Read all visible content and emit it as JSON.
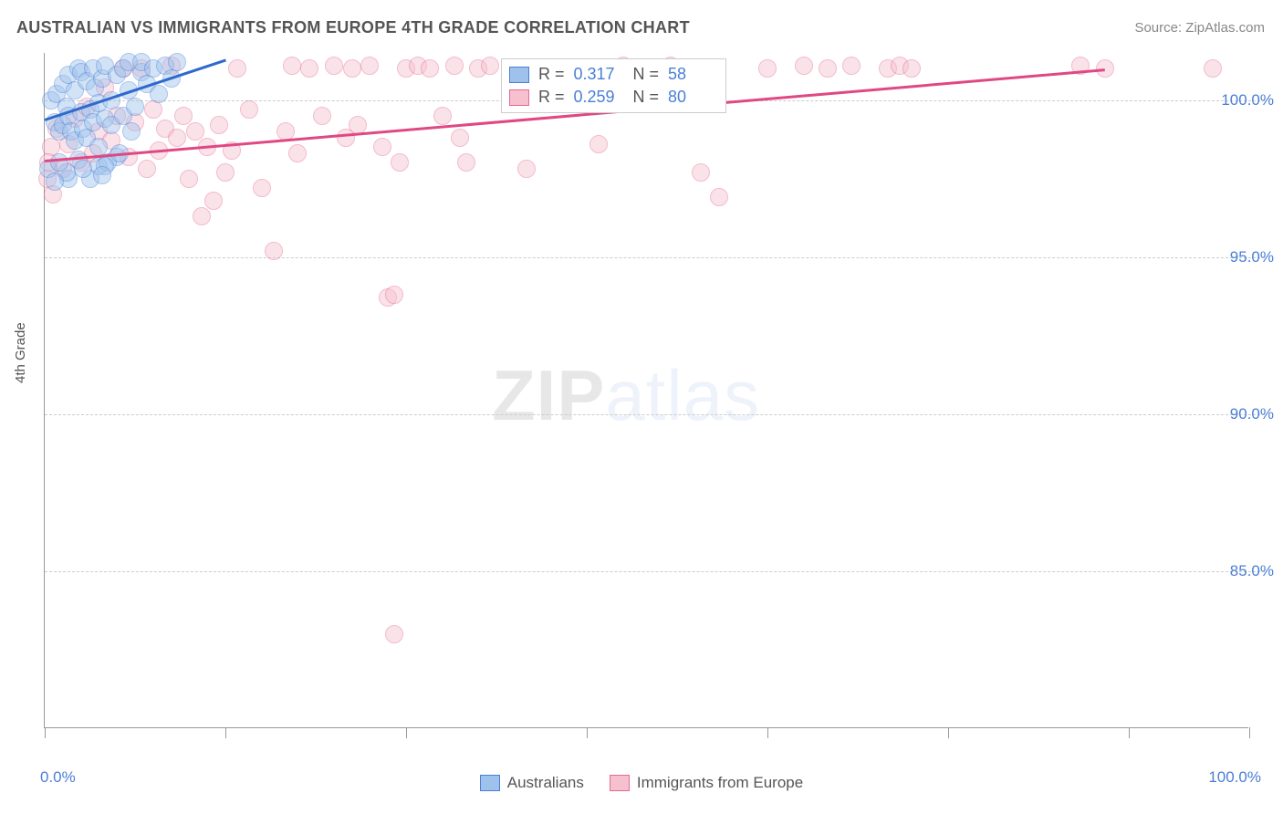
{
  "header": {
    "title": "AUSTRALIAN VS IMMIGRANTS FROM EUROPE 4TH GRADE CORRELATION CHART",
    "source": "Source: ZipAtlas.com"
  },
  "chart": {
    "type": "scatter",
    "y_axis_label": "4th Grade",
    "xlim": [
      0,
      100
    ],
    "ylim": [
      80,
      101.5
    ],
    "x_ticks": [
      0,
      15,
      30,
      45,
      60,
      75,
      90,
      100
    ],
    "y_ticks": [
      85,
      90,
      95,
      100
    ],
    "y_tick_labels": [
      "85.0%",
      "90.0%",
      "95.0%",
      "100.0%"
    ],
    "x_end_labels": [
      "0.0%",
      "100.0%"
    ],
    "grid_color": "#cccccc",
    "background_color": "#ffffff",
    "axis_color": "#999999",
    "tick_label_color": "#4a7fd6",
    "tick_label_fontsize": 17,
    "axis_label_fontsize": 15,
    "point_radius": 10,
    "point_opacity": 0.45,
    "watermark": {
      "zip": "ZIP",
      "atlas": "atlas"
    },
    "series": [
      {
        "name": "Australians",
        "fill_color": "#9fc2ec",
        "stroke_color": "#4a7fd6",
        "trend": {
          "x1": 0,
          "y1": 99.4,
          "x2": 15,
          "y2": 101.3,
          "color": "#2f69cc",
          "width": 3
        },
        "stats": {
          "R": "0.317",
          "N": "58"
        },
        "points": [
          [
            0.5,
            100.0
          ],
          [
            0.8,
            99.3
          ],
          [
            1.0,
            100.2
          ],
          [
            1.2,
            99.0
          ],
          [
            1.5,
            100.5
          ],
          [
            1.5,
            99.2
          ],
          [
            1.8,
            99.8
          ],
          [
            2.0,
            100.8
          ],
          [
            2.0,
            99.5
          ],
          [
            2.2,
            99.0
          ],
          [
            2.5,
            100.3
          ],
          [
            2.5,
            98.7
          ],
          [
            2.8,
            101.0
          ],
          [
            3.0,
            99.6
          ],
          [
            3.0,
            100.9
          ],
          [
            3.2,
            99.1
          ],
          [
            3.5,
            100.6
          ],
          [
            3.5,
            98.8
          ],
          [
            3.8,
            99.7
          ],
          [
            4.0,
            101.0
          ],
          [
            4.0,
            99.3
          ],
          [
            4.2,
            100.4
          ],
          [
            4.5,
            99.9
          ],
          [
            4.5,
            98.5
          ],
          [
            4.8,
            100.7
          ],
          [
            5.0,
            99.4
          ],
          [
            5.0,
            101.1
          ],
          [
            5.5,
            100.0
          ],
          [
            5.5,
            99.2
          ],
          [
            6.0,
            100.8
          ],
          [
            6.0,
            98.2
          ],
          [
            6.5,
            101.0
          ],
          [
            6.5,
            99.5
          ],
          [
            7.0,
            100.3
          ],
          [
            7.0,
            101.2
          ],
          [
            7.5,
            99.8
          ],
          [
            8.0,
            100.9
          ],
          [
            8.0,
            101.2
          ],
          [
            8.5,
            100.5
          ],
          [
            9.0,
            101.0
          ],
          [
            9.5,
            100.2
          ],
          [
            10.0,
            101.1
          ],
          [
            10.5,
            100.7
          ],
          [
            11.0,
            101.2
          ],
          [
            4.5,
            97.9
          ],
          [
            5.2,
            98.0
          ],
          [
            6.2,
            98.3
          ],
          [
            2.0,
            97.5
          ],
          [
            0.3,
            97.8
          ],
          [
            1.8,
            97.7
          ],
          [
            5.0,
            97.9
          ],
          [
            3.8,
            97.5
          ],
          [
            2.8,
            98.1
          ],
          [
            1.2,
            98.0
          ],
          [
            0.8,
            97.4
          ],
          [
            3.2,
            97.8
          ],
          [
            7.2,
            99.0
          ],
          [
            4.8,
            97.6
          ]
        ]
      },
      {
        "name": "Immigrants from Europe",
        "fill_color": "#f6c0cf",
        "stroke_color": "#e56a94",
        "trend": {
          "x1": 0,
          "y1": 98.1,
          "x2": 88,
          "y2": 101.0,
          "color": "#e04883",
          "width": 2.5
        },
        "stats": {
          "R": "0.259",
          "N": "80"
        },
        "points": [
          [
            0.5,
            98.5
          ],
          [
            1.0,
            99.1
          ],
          [
            1.5,
            97.8
          ],
          [
            2.0,
            98.6
          ],
          [
            2.5,
            99.4
          ],
          [
            3.0,
            98.0
          ],
          [
            3.5,
            99.8
          ],
          [
            4.0,
            98.3
          ],
          [
            4.5,
            99.0
          ],
          [
            5.0,
            100.4
          ],
          [
            5.5,
            98.7
          ],
          [
            6.0,
            99.5
          ],
          [
            6.5,
            101.0
          ],
          [
            7.0,
            98.2
          ],
          [
            7.5,
            99.3
          ],
          [
            8.0,
            101.0
          ],
          [
            8.5,
            97.8
          ],
          [
            9.0,
            99.7
          ],
          [
            9.5,
            98.4
          ],
          [
            10.0,
            99.1
          ],
          [
            10.5,
            101.1
          ],
          [
            11.0,
            98.8
          ],
          [
            11.5,
            99.5
          ],
          [
            12.0,
            97.5
          ],
          [
            12.5,
            99.0
          ],
          [
            13.0,
            96.3
          ],
          [
            13.5,
            98.5
          ],
          [
            14.0,
            96.8
          ],
          [
            14.5,
            99.2
          ],
          [
            15.0,
            97.7
          ],
          [
            15.5,
            98.4
          ],
          [
            16.0,
            101.0
          ],
          [
            17.0,
            99.7
          ],
          [
            18.0,
            97.2
          ],
          [
            19.0,
            95.2
          ],
          [
            20.0,
            99.0
          ],
          [
            20.5,
            101.1
          ],
          [
            21.0,
            98.3
          ],
          [
            22.0,
            101.0
          ],
          [
            23.0,
            99.5
          ],
          [
            24.0,
            101.1
          ],
          [
            25.0,
            98.8
          ],
          [
            25.5,
            101.0
          ],
          [
            26.0,
            99.2
          ],
          [
            27.0,
            101.1
          ],
          [
            28.0,
            98.5
          ],
          [
            28.5,
            93.7
          ],
          [
            29.0,
            93.8
          ],
          [
            29.5,
            98.0
          ],
          [
            30.0,
            101.0
          ],
          [
            31.0,
            101.1
          ],
          [
            32.0,
            101.0
          ],
          [
            33.0,
            99.5
          ],
          [
            34.0,
            101.1
          ],
          [
            34.5,
            98.8
          ],
          [
            35.0,
            98.0
          ],
          [
            36.0,
            101.0
          ],
          [
            37.0,
            101.1
          ],
          [
            40.0,
            97.8
          ],
          [
            44.0,
            101.0
          ],
          [
            46.0,
            98.6
          ],
          [
            48.0,
            101.1
          ],
          [
            50.0,
            101.0
          ],
          [
            52.0,
            101.1
          ],
          [
            54.5,
            97.7
          ],
          [
            56.0,
            96.9
          ],
          [
            60.0,
            101.0
          ],
          [
            63.0,
            101.1
          ],
          [
            65.0,
            101.0
          ],
          [
            67.0,
            101.1
          ],
          [
            70.0,
            101.0
          ],
          [
            71.0,
            101.1
          ],
          [
            72.0,
            101.0
          ],
          [
            86.0,
            101.1
          ],
          [
            88.0,
            101.0
          ],
          [
            97.0,
            101.0
          ],
          [
            29.0,
            83.0
          ],
          [
            0.2,
            97.5
          ],
          [
            0.3,
            98.0
          ],
          [
            0.7,
            97.0
          ]
        ]
      }
    ],
    "legend": {
      "items": [
        {
          "label": "Australians",
          "fill": "#9fc2ec",
          "stroke": "#4a7fd6"
        },
        {
          "label": "Immigrants from Europe",
          "fill": "#f6c0cf",
          "stroke": "#e56a94"
        }
      ]
    }
  }
}
